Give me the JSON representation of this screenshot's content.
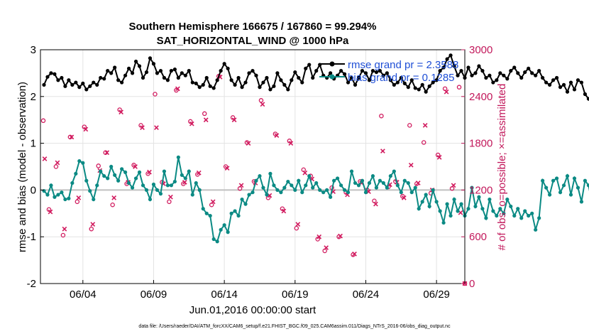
{
  "chart_data": {
    "type": "line",
    "title_line1": "Southern Hemisphere 166675 / 167860 = 99.294%",
    "title_line2": "SAT_HORIZONTAL_WIND @ 1000 hPa",
    "xlabel": "Jun.01,2016 00:00:00 start",
    "ylabel_left": "rmse and bias (model - observation)",
    "ylabel_right": "# of obs: o=possible; ×=assimilated",
    "footer": "data file: /Users/raeder/DAI/ATM_forcXX/CAM6_setup/f.e21.FHIST_BGC.f09_025.CAM6assim.011/Diags_NTrS_2016-06/obs_diag_output.nc",
    "x_range_days": [
      1.0,
      31.0
    ],
    "ylim_left": [
      -2,
      3
    ],
    "ylim_right": [
      0,
      3000
    ],
    "x_ticks": [
      {
        "day": 4,
        "label": "06/04"
      },
      {
        "day": 9,
        "label": "06/09"
      },
      {
        "day": 14,
        "label": "06/14"
      },
      {
        "day": 19,
        "label": "06/19"
      },
      {
        "day": 24,
        "label": "06/24"
      },
      {
        "day": 29,
        "label": "06/29"
      }
    ],
    "y_ticks_left": [
      "-2",
      "-1",
      "0",
      "1",
      "2",
      "3"
    ],
    "y_ticks_right": [
      "0",
      "600",
      "1200",
      "1800",
      "2400",
      "3000"
    ],
    "legend": [
      {
        "label": "rmse grand pr = 2.3588",
        "color": "#000000"
      },
      {
        "label": "bias grand pr = 0.1285",
        "color": "#0b8a84"
      }
    ],
    "colors": {
      "rmse": "#000000",
      "bias": "#0b8a84",
      "obs": "#d11a5e",
      "zero_line": "#c0c0c0",
      "right_axis": "#c2185b"
    },
    "series_x_start": 1.25,
    "series_x_step": 0.25,
    "rmse": [
      2.25,
      2.42,
      2.5,
      2.48,
      2.35,
      2.4,
      2.22,
      2.35,
      2.25,
      2.3,
      2.2,
      2.28,
      2.15,
      2.22,
      2.3,
      2.25,
      2.4,
      2.38,
      2.55,
      2.5,
      2.62,
      2.35,
      2.3,
      2.45,
      2.6,
      2.5,
      2.75,
      2.65,
      2.4,
      2.52,
      2.82,
      2.7,
      2.5,
      2.55,
      2.4,
      2.35,
      2.55,
      2.58,
      2.4,
      2.5,
      2.45,
      2.55,
      2.3,
      2.28,
      2.2,
      2.25,
      2.4,
      2.22,
      2.18,
      2.35,
      2.55,
      2.7,
      2.6,
      2.35,
      2.25,
      2.4,
      2.2,
      2.3,
      2.5,
      2.55,
      2.45,
      2.2,
      2.3,
      2.4,
      2.15,
      2.22,
      2.5,
      2.35,
      2.25,
      2.15,
      2.35,
      2.52,
      2.4,
      2.3,
      2.6,
      2.68,
      2.4,
      2.55,
      2.68,
      2.45,
      2.4,
      2.5,
      2.38,
      2.45,
      2.55,
      2.48,
      2.3,
      2.4,
      2.25,
      2.4,
      2.55,
      2.5,
      2.35,
      2.55,
      2.52,
      2.55,
      2.45,
      2.5,
      2.35,
      2.25,
      2.3,
      2.4,
      2.28,
      2.2,
      2.35,
      2.18,
      2.15,
      2.25,
      2.1,
      2.22,
      2.3,
      2.35,
      2.55,
      2.62,
      2.8,
      2.88,
      2.65,
      2.45,
      2.55,
      2.4,
      2.62,
      2.45,
      2.5,
      2.65,
      2.55,
      2.4,
      2.45,
      2.3,
      2.35,
      2.5,
      2.45,
      2.38,
      2.55,
      2.62,
      2.5,
      2.4,
      2.52,
      2.6,
      2.5,
      2.45,
      2.55,
      2.4,
      2.3,
      2.25,
      2.35,
      2.4,
      2.2,
      2.25,
      2.1,
      2.3,
      2.15,
      2.35,
      2.3,
      2.05,
      1.95,
      1.82,
      2.15,
      2.2,
      2.3,
      2.38
    ],
    "bias": [
      -0.02,
      -0.1,
      0.1,
      -0.15,
      -0.1,
      -0.05,
      -0.2,
      -0.18,
      0.15,
      0.35,
      0.62,
      0.58,
      0.2,
      -0.02,
      -0.2,
      0.1,
      0.4,
      0.3,
      0.25,
      0.5,
      0.32,
      0.2,
      0.45,
      0.38,
      0.15,
      0.05,
      0.25,
      0.38,
      0.1,
      0.0,
      -0.2,
      0.12,
      0.0,
      -0.08,
      0.4,
      0.1,
      0.1,
      0.18,
      0.7,
      0.32,
      0.25,
      0.4,
      -0.1,
      0.15,
      0.0,
      -0.4,
      -0.5,
      -0.55,
      -1.05,
      -1.1,
      -0.85,
      -0.75,
      -0.9,
      -0.5,
      -0.45,
      -0.55,
      -0.2,
      -0.3,
      -0.1,
      -0.05,
      0.2,
      0.3,
      0.05,
      -0.1,
      0.35,
      0.1,
      0.0,
      -0.05,
      0.05,
      0.18,
      0.1,
      0.0,
      0.2,
      -0.05,
      0.1,
      0.3,
      0.05,
      0.15,
      0.0,
      -0.05,
      0.0,
      -0.15,
      0.2,
      0.25,
      0.1,
      0.0,
      -0.05,
      0.4,
      0.15,
      0.1,
      0.2,
      -0.05,
      0.15,
      0.3,
      0.05,
      0.2,
      0.15,
      0.05,
      0.3,
      0.4,
      0.1,
      -0.05,
      0.2,
      0.15,
      -0.05,
      0.05,
      -0.4,
      -0.25,
      -0.1,
      -0.35,
      0.0,
      -0.25,
      -0.45,
      -0.7,
      -0.3,
      -0.55,
      -0.2,
      -0.45,
      -0.3,
      -0.55,
      -0.4,
      0.05,
      -0.35,
      -0.15,
      -0.4,
      -0.6,
      -0.2,
      -0.45,
      -0.55,
      -0.4,
      -0.5,
      -0.2,
      -0.35,
      -0.55,
      -0.4,
      -0.6,
      -0.45,
      -0.55,
      -0.5,
      -0.85,
      -0.6,
      0.2,
      0.05,
      -0.1,
      0.2,
      0.25,
      -0.05,
      0.1,
      0.3,
      -0.1,
      0.25,
      0.05,
      -0.25,
      0.2,
      0.1,
      -0.3,
      0.05,
      0.08
    ],
    "obs_possible": [
      {
        "x": 1.2,
        "y": 2090
      },
      {
        "x": 1.6,
        "y": 950
      },
      {
        "x": 2.1,
        "y": 1500
      },
      {
        "x": 2.6,
        "y": 620
      },
      {
        "x": 3.1,
        "y": 1880
      },
      {
        "x": 3.6,
        "y": 1050
      },
      {
        "x": 4.1,
        "y": 2010
      },
      {
        "x": 4.6,
        "y": 700
      },
      {
        "x": 5.1,
        "y": 1510
      },
      {
        "x": 5.6,
        "y": 1680
      },
      {
        "x": 6.1,
        "y": 1010
      },
      {
        "x": 6.6,
        "y": 2230
      },
      {
        "x": 7.1,
        "y": 1280
      },
      {
        "x": 7.6,
        "y": 1520
      },
      {
        "x": 8.1,
        "y": 2030
      },
      {
        "x": 8.6,
        "y": 1410
      },
      {
        "x": 9.1,
        "y": 2430
      },
      {
        "x": 9.6,
        "y": 1300
      },
      {
        "x": 10.1,
        "y": 1050
      },
      {
        "x": 10.6,
        "y": 2480
      },
      {
        "x": 11.1,
        "y": 1280
      },
      {
        "x": 11.6,
        "y": 2080
      },
      {
        "x": 12.1,
        "y": 1400
      },
      {
        "x": 12.6,
        "y": 2180
      },
      {
        "x": 13.1,
        "y": 1010
      },
      {
        "x": 13.6,
        "y": 2660
      },
      {
        "x": 14.1,
        "y": 1500
      },
      {
        "x": 14.6,
        "y": 2130
      },
      {
        "x": 15.1,
        "y": 1220
      },
      {
        "x": 15.6,
        "y": 1810
      },
      {
        "x": 16.1,
        "y": 1310
      },
      {
        "x": 16.6,
        "y": 2350
      },
      {
        "x": 17.1,
        "y": 1100
      },
      {
        "x": 17.6,
        "y": 1920
      },
      {
        "x": 18.1,
        "y": 960
      },
      {
        "x": 18.6,
        "y": 1830
      },
      {
        "x": 19.1,
        "y": 710
      },
      {
        "x": 19.6,
        "y": 1460
      },
      {
        "x": 20.1,
        "y": 1380
      },
      {
        "x": 20.6,
        "y": 570
      },
      {
        "x": 21.1,
        "y": 420
      },
      {
        "x": 21.6,
        "y": 1230
      },
      {
        "x": 22.1,
        "y": 600
      },
      {
        "x": 22.6,
        "y": 1170
      },
      {
        "x": 23.1,
        "y": 370
      },
      {
        "x": 23.6,
        "y": 1310
      },
      {
        "x": 24.1,
        "y": 1200
      },
      {
        "x": 24.6,
        "y": 1060
      },
      {
        "x": 25.1,
        "y": 2150
      },
      {
        "x": 25.6,
        "y": 1240
      },
      {
        "x": 26.1,
        "y": 1310
      },
      {
        "x": 26.6,
        "y": 1120
      },
      {
        "x": 27.1,
        "y": 2030
      },
      {
        "x": 27.6,
        "y": 1280
      },
      {
        "x": 28.1,
        "y": 1810
      },
      {
        "x": 28.6,
        "y": 1160
      },
      {
        "x": 29.1,
        "y": 1650
      },
      {
        "x": 29.6,
        "y": 2500
      },
      {
        "x": 30.1,
        "y": 1220
      },
      {
        "x": 30.6,
        "y": 2520
      },
      {
        "x": 31.0,
        "y": 0
      }
    ],
    "obs_assimilated": [
      {
        "x": 1.3,
        "y": 1600
      },
      {
        "x": 1.7,
        "y": 920
      },
      {
        "x": 2.2,
        "y": 1550
      },
      {
        "x": 2.7,
        "y": 700
      },
      {
        "x": 3.2,
        "y": 1880
      },
      {
        "x": 3.7,
        "y": 1100
      },
      {
        "x": 4.2,
        "y": 1980
      },
      {
        "x": 4.7,
        "y": 760
      },
      {
        "x": 5.2,
        "y": 1450
      },
      {
        "x": 5.7,
        "y": 1680
      },
      {
        "x": 6.2,
        "y": 1100
      },
      {
        "x": 6.7,
        "y": 2200
      },
      {
        "x": 7.2,
        "y": 1300
      },
      {
        "x": 7.7,
        "y": 1500
      },
      {
        "x": 8.2,
        "y": 2000
      },
      {
        "x": 8.7,
        "y": 1430
      },
      {
        "x": 9.2,
        "y": 2000
      },
      {
        "x": 9.7,
        "y": 1280
      },
      {
        "x": 10.2,
        "y": 1110
      },
      {
        "x": 10.7,
        "y": 2500
      },
      {
        "x": 11.2,
        "y": 1300
      },
      {
        "x": 11.7,
        "y": 2050
      },
      {
        "x": 12.2,
        "y": 1420
      },
      {
        "x": 12.7,
        "y": 2100
      },
      {
        "x": 13.2,
        "y": 1050
      },
      {
        "x": 13.7,
        "y": 2650
      },
      {
        "x": 14.2,
        "y": 1480
      },
      {
        "x": 14.7,
        "y": 2100
      },
      {
        "x": 15.2,
        "y": 1260
      },
      {
        "x": 15.7,
        "y": 1800
      },
      {
        "x": 16.2,
        "y": 1290
      },
      {
        "x": 16.7,
        "y": 2300
      },
      {
        "x": 17.2,
        "y": 1130
      },
      {
        "x": 17.7,
        "y": 1900
      },
      {
        "x": 18.2,
        "y": 930
      },
      {
        "x": 18.7,
        "y": 1800
      },
      {
        "x": 19.2,
        "y": 760
      },
      {
        "x": 19.7,
        "y": 1420
      },
      {
        "x": 20.2,
        "y": 1340
      },
      {
        "x": 20.7,
        "y": 600
      },
      {
        "x": 21.2,
        "y": 460
      },
      {
        "x": 21.7,
        "y": 1180
      },
      {
        "x": 22.2,
        "y": 610
      },
      {
        "x": 22.7,
        "y": 1140
      },
      {
        "x": 23.2,
        "y": 380
      },
      {
        "x": 23.7,
        "y": 1290
      },
      {
        "x": 24.2,
        "y": 1180
      },
      {
        "x": 24.7,
        "y": 1020
      },
      {
        "x": 25.2,
        "y": 1700
      },
      {
        "x": 25.7,
        "y": 1270
      },
      {
        "x": 26.2,
        "y": 1300
      },
      {
        "x": 26.7,
        "y": 1100
      },
      {
        "x": 27.2,
        "y": 1520
      },
      {
        "x": 27.7,
        "y": 1290
      },
      {
        "x": 28.2,
        "y": 2030
      },
      {
        "x": 28.7,
        "y": 1200
      },
      {
        "x": 29.2,
        "y": 1620
      },
      {
        "x": 29.7,
        "y": 2460
      },
      {
        "x": 30.2,
        "y": 1260
      },
      {
        "x": 30.7,
        "y": 910
      },
      {
        "x": 31.0,
        "y": 0
      }
    ]
  }
}
